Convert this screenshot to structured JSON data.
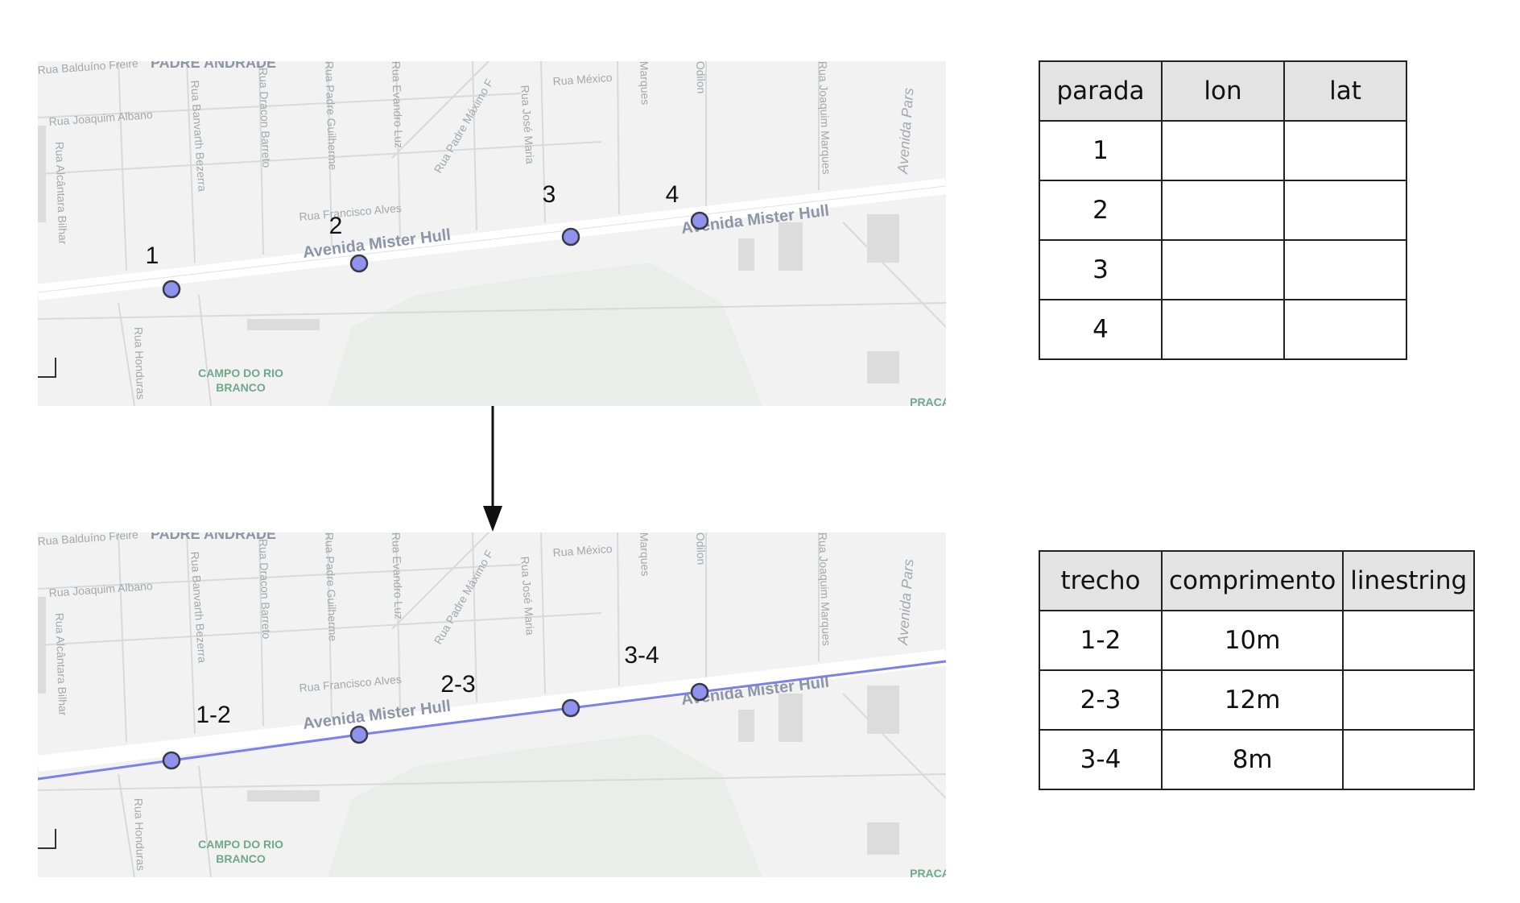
{
  "map_labels": {
    "neighborhood": "PADRE ANDRADE",
    "campo_line1": "CAMPO DO RIO",
    "campo_line2": "BRANCO",
    "praca": "PRAÇA",
    "streets": {
      "balduino": "Rua Balduíno Freire",
      "joaquim_albano": "Rua Joaquim Albano",
      "alcantara": "Rua Alcântara Bilhar",
      "banvarth": "Rua Banvarth Bezerra",
      "dracon": "Rua Dracon Barreto",
      "padre_guilherme": "Rua Padre Guilherme",
      "evandro": "Rua Evandro Luz",
      "padre_maximo": "Rua Padre Máximo F",
      "jose_maria": "Rua José Maria",
      "mexico": "Rua México",
      "marques": "Marques",
      "odilon": "Odilon",
      "joaquim_marques": "Rua Joaquim Marques",
      "parsifal": "Avenida Pars",
      "francisco_alves": "Rua Francisco Alves",
      "honduras": "Rua Honduras",
      "mister_hull_1": "Avenida Mister Hull",
      "mister_hull_2": "Avenida Mister Hull"
    }
  },
  "stop_labels": [
    "1",
    "2",
    "3",
    "4"
  ],
  "segment_labels": [
    "1-2",
    "2-3",
    "3-4"
  ],
  "colors": {
    "point_fill": "#8f93ee",
    "route_line": "#7b80ea",
    "map_bg": "#f2f2f2",
    "street_label": "#9aa0a8",
    "park_label": "#6fa88a"
  },
  "stops_table": {
    "headers": [
      "parada",
      "lon",
      "lat"
    ],
    "rows": [
      [
        "1",
        "",
        ""
      ],
      [
        "2",
        "",
        ""
      ],
      [
        "3",
        "",
        ""
      ],
      [
        "4",
        "",
        ""
      ]
    ]
  },
  "segments_table": {
    "headers": [
      "trecho",
      "comprimento",
      "linestring"
    ],
    "rows": [
      [
        "1-2",
        "10m",
        ""
      ],
      [
        "2-3",
        "12m",
        ""
      ],
      [
        "3-4",
        "8m",
        ""
      ]
    ]
  }
}
